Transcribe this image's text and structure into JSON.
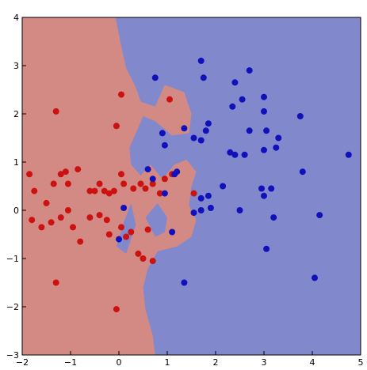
{
  "chart_data": {
    "type": "scatter",
    "title": "",
    "xlabel": "",
    "ylabel": "",
    "xlim": [
      -2,
      5
    ],
    "ylim": [
      -3,
      4
    ],
    "x_ticks": [
      -2,
      -1,
      0,
      1,
      2,
      3,
      4,
      5
    ],
    "y_ticks": [
      -3,
      -2,
      -1,
      0,
      1,
      2,
      3,
      4
    ],
    "grid": false,
    "legend": "none",
    "colors": {
      "class_red_region": "#d48a84",
      "class_blue_region": "#8288cc",
      "class_red_point": "#cc1111",
      "class_blue_point": "#1111bb"
    },
    "decision_regions": {
      "red": [
        [
          -2,
          4
        ],
        [
          -0.07,
          4
        ],
        [
          0.05,
          3.4
        ],
        [
          0.15,
          2.95
        ],
        [
          0.35,
          2.55
        ],
        [
          0.45,
          2.25
        ],
        [
          0.75,
          2.15
        ],
        [
          0.95,
          2.6
        ],
        [
          1.35,
          2.45
        ],
        [
          1.5,
          2.0
        ],
        [
          1.45,
          1.6
        ],
        [
          1.1,
          1.55
        ],
        [
          0.75,
          1.85
        ],
        [
          0.5,
          1.95
        ],
        [
          0.35,
          1.6
        ],
        [
          0.22,
          1.3
        ],
        [
          0.25,
          0.95
        ],
        [
          0.45,
          0.72
        ],
        [
          0.65,
          0.95
        ],
        [
          0.9,
          0.65
        ],
        [
          1.15,
          0.95
        ],
        [
          1.4,
          1.05
        ],
        [
          1.6,
          0.8
        ],
        [
          1.5,
          0.5
        ],
        [
          1.45,
          0.1
        ],
        [
          1.6,
          -0.2
        ],
        [
          1.5,
          -0.55
        ],
        [
          1.2,
          -0.75
        ],
        [
          0.8,
          -0.85
        ],
        [
          0.6,
          -1.2
        ],
        [
          0.5,
          -1.6
        ],
        [
          0.55,
          -2.05
        ],
        [
          0.7,
          -2.6
        ],
        [
          0.75,
          -3
        ],
        [
          -2,
          -3
        ]
      ],
      "blue_islands": [
        [
          [
            -0.05,
            -0.75
          ],
          [
            0.1,
            -0.25
          ],
          [
            0.25,
            0.15
          ],
          [
            0.35,
            -0.3
          ],
          [
            0.25,
            -0.6
          ],
          [
            0.15,
            -0.9
          ]
        ],
        [
          [
            0.55,
            -0.15
          ],
          [
            0.8,
            0.15
          ],
          [
            1.0,
            -0.15
          ],
          [
            0.95,
            -0.45
          ],
          [
            0.75,
            -0.55
          ]
        ]
      ]
    },
    "series": [
      {
        "class": "red",
        "points": [
          [
            -1.85,
            0.75
          ],
          [
            -1.75,
            0.4
          ],
          [
            -1.5,
            0.15
          ],
          [
            -1.35,
            0.55
          ],
          [
            -1.2,
            0.75
          ],
          [
            -1.1,
            0.8
          ],
          [
            -0.85,
            0.85
          ],
          [
            -0.6,
            0.4
          ],
          [
            -0.5,
            0.4
          ],
          [
            -0.4,
            0.55
          ],
          [
            -0.3,
            0.4
          ],
          [
            -0.2,
            0.35
          ],
          [
            -0.1,
            0.4
          ],
          [
            0.05,
            0.75
          ],
          [
            0.1,
            0.55
          ],
          [
            0.3,
            0.45
          ],
          [
            0.45,
            0.55
          ],
          [
            0.55,
            0.45
          ],
          [
            0.7,
            0.55
          ],
          [
            0.85,
            0.35
          ],
          [
            -1.8,
            -0.2
          ],
          [
            -1.6,
            -0.35
          ],
          [
            -1.4,
            -0.25
          ],
          [
            -1.2,
            -0.15
          ],
          [
            -1.05,
            0.0
          ],
          [
            -0.95,
            -0.35
          ],
          [
            -0.8,
            -0.65
          ],
          [
            -0.6,
            -0.15
          ],
          [
            -0.4,
            -0.1
          ],
          [
            -0.25,
            -0.2
          ],
          [
            -0.2,
            -0.5
          ],
          [
            0.05,
            -0.35
          ],
          [
            0.15,
            -0.55
          ],
          [
            0.25,
            -0.45
          ],
          [
            0.4,
            -0.9
          ],
          [
            0.5,
            -1.0
          ],
          [
            0.7,
            -1.05
          ],
          [
            -1.3,
            2.05
          ],
          [
            0.05,
            2.4
          ],
          [
            1.05,
            2.3
          ],
          [
            -0.05,
            1.75
          ],
          [
            -1.3,
            -1.5
          ],
          [
            -0.05,
            -2.05
          ],
          [
            1.55,
            0.35
          ],
          [
            1.1,
            0.75
          ],
          [
            0.95,
            0.65
          ],
          [
            -1.05,
            0.55
          ],
          [
            0.6,
            -0.4
          ]
        ]
      },
      {
        "class": "blue",
        "points": [
          [
            1.7,
            3.1
          ],
          [
            0.75,
            2.75
          ],
          [
            1.75,
            2.75
          ],
          [
            2.4,
            2.65
          ],
          [
            2.7,
            2.9
          ],
          [
            2.55,
            2.3
          ],
          [
            3.0,
            2.35
          ],
          [
            2.35,
            2.15
          ],
          [
            3.0,
            2.05
          ],
          [
            3.3,
            1.5
          ],
          [
            3.75,
            1.95
          ],
          [
            0.9,
            1.6
          ],
          [
            1.35,
            1.7
          ],
          [
            1.55,
            1.5
          ],
          [
            1.85,
            1.8
          ],
          [
            1.8,
            1.65
          ],
          [
            2.7,
            1.65
          ],
          [
            3.05,
            1.65
          ],
          [
            0.95,
            1.35
          ],
          [
            1.7,
            1.45
          ],
          [
            2.3,
            1.2
          ],
          [
            2.4,
            1.15
          ],
          [
            2.6,
            1.15
          ],
          [
            3.0,
            1.25
          ],
          [
            3.25,
            1.3
          ],
          [
            4.75,
            1.15
          ],
          [
            3.8,
            0.8
          ],
          [
            0.7,
            0.65
          ],
          [
            0.95,
            0.35
          ],
          [
            1.15,
            0.75
          ],
          [
            1.7,
            0.25
          ],
          [
            1.85,
            0.3
          ],
          [
            2.15,
            0.5
          ],
          [
            2.95,
            0.45
          ],
          [
            3.0,
            0.3
          ],
          [
            3.15,
            0.45
          ],
          [
            0.1,
            0.05
          ],
          [
            1.7,
            0.0
          ],
          [
            1.9,
            0.05
          ],
          [
            1.55,
            -0.05
          ],
          [
            2.5,
            0.0
          ],
          [
            3.2,
            -0.15
          ],
          [
            4.15,
            -0.1
          ],
          [
            0.0,
            -0.6
          ],
          [
            1.1,
            -0.45
          ],
          [
            3.05,
            -0.8
          ],
          [
            1.35,
            -1.5
          ],
          [
            4.05,
            -1.4
          ],
          [
            0.6,
            0.85
          ],
          [
            1.2,
            0.8
          ]
        ]
      }
    ]
  }
}
